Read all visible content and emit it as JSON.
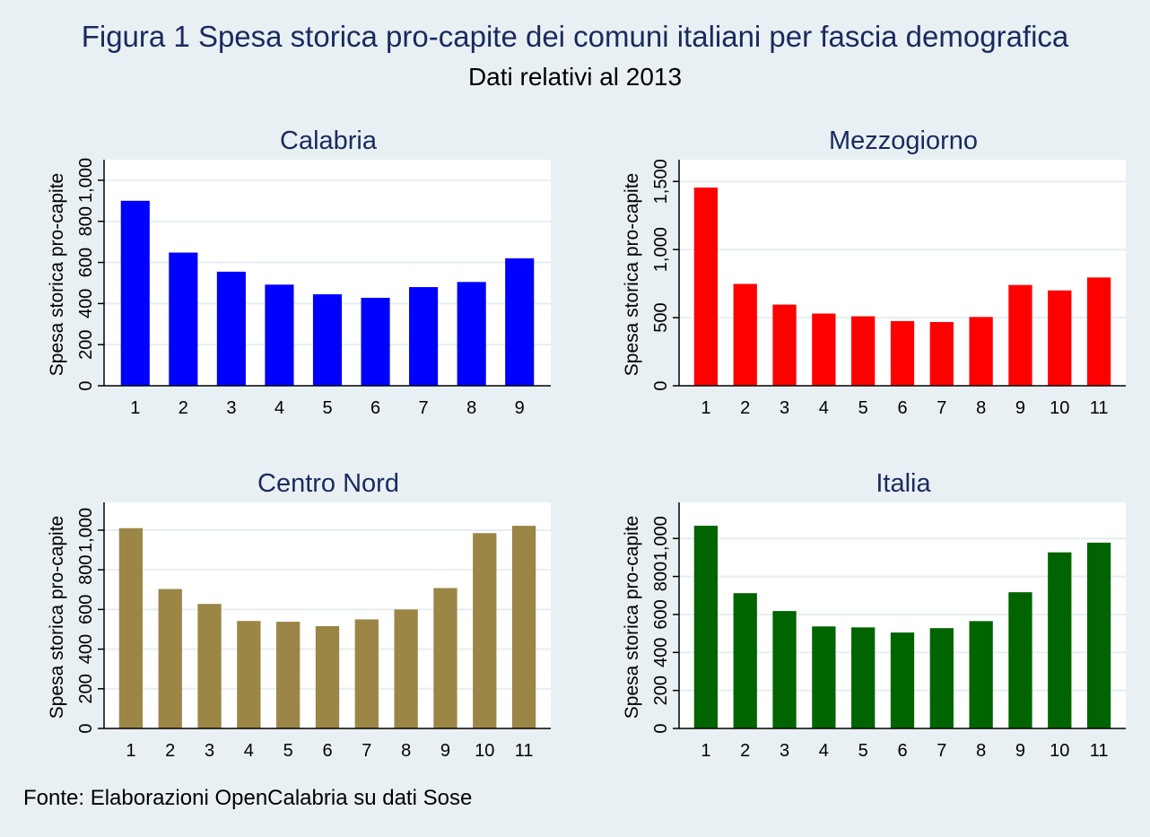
{
  "title": "Figura 1 Spesa storica pro-capite dei comuni italiani per fascia demografica",
  "subtitle": "Dati relativi al 2013",
  "note": "Fonte: Elaborazioni OpenCalabria su dati Sose",
  "chart_data": [
    {
      "type": "bar",
      "title": "Calabria",
      "ylabel": "Spesa storica pro-capite",
      "color": "#0000ff",
      "categories": [
        "1",
        "2",
        "3",
        "4",
        "5",
        "6",
        "7",
        "8",
        "9"
      ],
      "values": [
        900,
        648,
        555,
        492,
        445,
        428,
        480,
        505,
        620
      ],
      "ylim": [
        0,
        1100
      ],
      "yticks": [
        0,
        200,
        400,
        600,
        800,
        1000
      ],
      "ytick_labels": [
        "0",
        "200",
        "400",
        "600",
        "800",
        "1,000"
      ]
    },
    {
      "type": "bar",
      "title": "Mezzogiorno",
      "ylabel": "Spesa storica pro-capite",
      "color": "#ff0000",
      "categories": [
        "1",
        "2",
        "3",
        "4",
        "5",
        "6",
        "7",
        "8",
        "9",
        "10",
        "11"
      ],
      "values": [
        1455,
        748,
        596,
        530,
        510,
        475,
        468,
        505,
        740,
        700,
        795
      ],
      "ylim": [
        0,
        1660
      ],
      "yticks": [
        0,
        500,
        1000,
        1500
      ],
      "ytick_labels": [
        "0",
        "500",
        "1,000",
        "1,500"
      ]
    },
    {
      "type": "bar",
      "title": "Centro Nord",
      "ylabel": "Spesa storica pro-capite",
      "color": "#9b8646",
      "categories": [
        "1",
        "2",
        "3",
        "4",
        "5",
        "6",
        "7",
        "8",
        "9",
        "10",
        "11"
      ],
      "values": [
        1010,
        703,
        628,
        542,
        538,
        516,
        550,
        600,
        708,
        985,
        1022
      ],
      "ylim": [
        0,
        1140
      ],
      "yticks": [
        0,
        200,
        400,
        600,
        800,
        1000
      ],
      "ytick_labels": [
        "0",
        "200",
        "400",
        "600",
        "800",
        "1,000"
      ]
    },
    {
      "type": "bar",
      "title": "Italia",
      "ylabel": "Spesa storica pro-capite",
      "color": "#006400",
      "categories": [
        "1",
        "2",
        "3",
        "4",
        "5",
        "6",
        "7",
        "8",
        "9",
        "10",
        "11"
      ],
      "values": [
        1067,
        712,
        618,
        537,
        532,
        505,
        528,
        565,
        717,
        927,
        978
      ],
      "ylim": [
        0,
        1190
      ],
      "yticks": [
        0,
        200,
        400,
        600,
        800,
        1000
      ],
      "ytick_labels": [
        "0",
        "200",
        "400",
        "600",
        "800",
        "1,000"
      ]
    }
  ]
}
